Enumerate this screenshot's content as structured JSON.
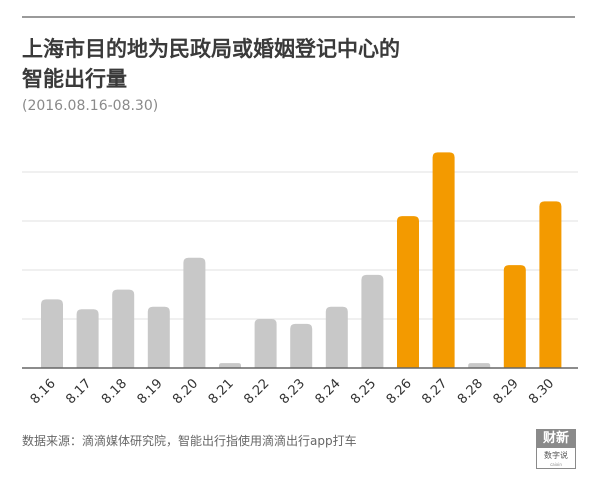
{
  "title_lines": [
    "上海市目的地为民政局或婚姻登记中心的",
    "智能出行量"
  ],
  "subtitle": "(2016.08.16-08.30)",
  "source": "数据来源：滴滴媒体研究院，智能出行指使用滴滴出行app打车",
  "badge": {
    "main": "财新",
    "sub": "数字说",
    "tiny": "caixin"
  },
  "colors": {
    "normal": "#c8c8c8",
    "highlight": "#f39a00",
    "grid": "#e0e0e0",
    "axis": "#666666"
  },
  "chart_data": {
    "type": "bar",
    "title": "上海市目的地为民政局或婚姻登记中心的智能出行量",
    "subtitle": "(2016.08.16-08.30)",
    "categories": [
      "8.16",
      "8.17",
      "8.18",
      "8.19",
      "8.20",
      "8.21",
      "8.22",
      "8.23",
      "8.24",
      "8.25",
      "8.26",
      "8.27",
      "8.28",
      "8.29",
      "8.30"
    ],
    "values": [
      28,
      24,
      32,
      25,
      45,
      2,
      20,
      18,
      25,
      38,
      62,
      88,
      2,
      42,
      68
    ],
    "highlight": [
      false,
      false,
      false,
      false,
      false,
      false,
      false,
      false,
      false,
      false,
      true,
      true,
      false,
      true,
      true
    ],
    "ylim": [
      0,
      100
    ],
    "gridlines": [
      20,
      40,
      60,
      80
    ],
    "grid": true,
    "xlabel": "",
    "ylabel": ""
  }
}
